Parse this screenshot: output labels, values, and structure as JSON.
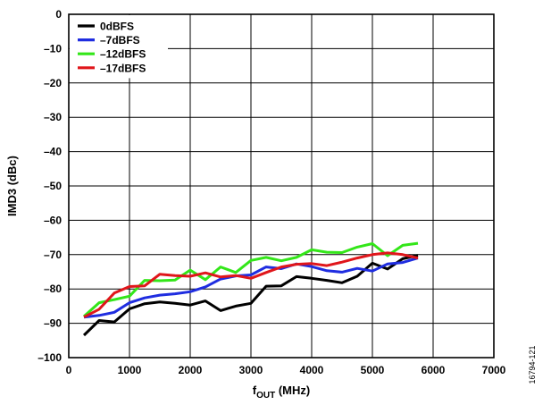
{
  "chart_data": {
    "type": "line",
    "xlabel_main": "f",
    "xlabel_sub": "OUT",
    "xlabel_unit": " (MHz)",
    "ylabel": "IMD3 (dBc)",
    "xlim": [
      0,
      7000
    ],
    "ylim": [
      -100,
      0
    ],
    "xticks": [
      0,
      1000,
      2000,
      3000,
      4000,
      5000,
      6000,
      7000
    ],
    "yticks": [
      0,
      -10,
      -20,
      -30,
      -40,
      -50,
      -60,
      -70,
      -80,
      -90,
      -100
    ],
    "ytick_labels": [
      "0",
      "–10",
      "–20",
      "–30",
      "–40",
      "–50",
      "–60",
      "–70",
      "–80",
      "–90",
      "–100"
    ],
    "grid": true,
    "legend_position": "top-left",
    "figure_id": "16794-121",
    "series": [
      {
        "name": "0dBFS",
        "color": "#000000",
        "x": [
          250,
          500,
          750,
          1000,
          1250,
          1500,
          1750,
          2000,
          2250,
          2500,
          2750,
          3000,
          3250,
          3500,
          3750,
          4000,
          4250,
          4500,
          4750,
          5000,
          5250,
          5500,
          5750
        ],
        "y": [
          -93.5,
          -89.2,
          -89.6,
          -85.8,
          -84.3,
          -83.8,
          -84.2,
          -84.7,
          -83.5,
          -86.3,
          -85.0,
          -84.2,
          -79.2,
          -79.1,
          -76.4,
          -76.9,
          -77.5,
          -78.2,
          -76.3,
          -72.5,
          -74.2,
          -71.2,
          -70.2
        ]
      },
      {
        "name": "–7dBFS",
        "color": "#1f2de0",
        "x": [
          250,
          500,
          750,
          1000,
          1250,
          1500,
          1750,
          2000,
          2250,
          2500,
          2750,
          3000,
          3250,
          3500,
          3750,
          4000,
          4250,
          4500,
          4750,
          5000,
          5250,
          5500,
          5750
        ],
        "y": [
          -88.2,
          -87.7,
          -86.8,
          -84.0,
          -82.6,
          -81.8,
          -81.4,
          -80.8,
          -79.4,
          -77.1,
          -76.2,
          -75.9,
          -73.6,
          -74.1,
          -72.7,
          -73.5,
          -74.7,
          -75.1,
          -74.0,
          -74.8,
          -72.7,
          -72.3,
          -71.0
        ]
      },
      {
        "name": "–12dBFS",
        "color": "#33e619",
        "x": [
          250,
          500,
          750,
          1000,
          1250,
          1500,
          1750,
          2000,
          2250,
          2500,
          2750,
          3000,
          3250,
          3500,
          3750,
          4000,
          4250,
          4500,
          4750,
          5000,
          5250,
          5500,
          5750
        ],
        "y": [
          -88.0,
          -84.0,
          -83.1,
          -82.1,
          -77.5,
          -77.6,
          -77.4,
          -74.5,
          -77.3,
          -73.6,
          -75.2,
          -71.7,
          -70.8,
          -71.8,
          -70.8,
          -68.6,
          -69.3,
          -69.4,
          -67.8,
          -66.8,
          -70.3,
          -67.3,
          -66.7
        ]
      },
      {
        "name": "–17dBFS",
        "color": "#e0161b",
        "x": [
          250,
          500,
          750,
          1000,
          1250,
          1500,
          1750,
          2000,
          2250,
          2500,
          2750,
          3000,
          3250,
          3500,
          3750,
          4000,
          4250,
          4500,
          4750,
          5000,
          5250,
          5500,
          5750
        ],
        "y": [
          -88.2,
          -85.9,
          -81.2,
          -79.3,
          -79.1,
          -75.7,
          -76.1,
          -76.3,
          -75.3,
          -76.5,
          -76.1,
          -76.9,
          -75.2,
          -73.6,
          -72.8,
          -72.6,
          -73.2,
          -72.2,
          -71.0,
          -70.0,
          -69.5,
          -70.0,
          -71.0
        ]
      }
    ]
  }
}
